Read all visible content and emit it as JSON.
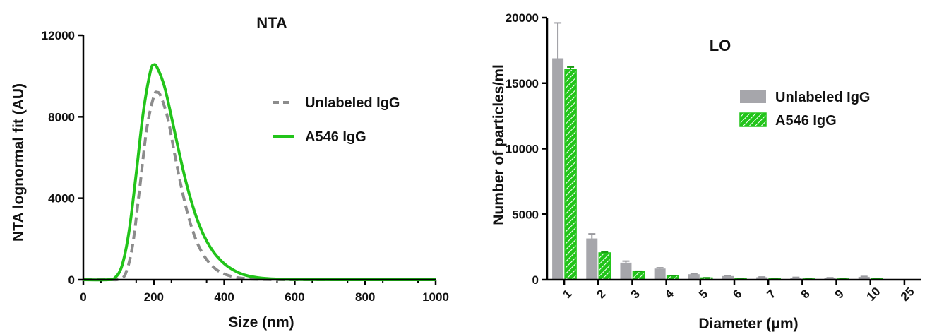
{
  "chart_data": [
    {
      "type": "line",
      "title": "NTA",
      "xlabel": "Size (nm)",
      "ylabel": "NTA lognormal fit (AU)",
      "xlim": [
        0,
        1000
      ],
      "ylim": [
        0,
        12000
      ],
      "xticks": [
        "0",
        "200",
        "400",
        "600",
        "800",
        "1000"
      ],
      "yticks": [
        "0",
        "4000",
        "8000",
        "12000"
      ],
      "legend_position": "right",
      "series": [
        {
          "name": "Unlabeled IgG",
          "style": "dashed",
          "color": "#8c8c8c",
          "x": [
            0,
            80,
            100,
            120,
            140,
            160,
            180,
            200,
            210,
            220,
            240,
            260,
            280,
            300,
            320,
            340,
            360,
            380,
            400,
            430,
            460,
            500,
            600,
            800,
            1000
          ],
          "y": [
            0,
            0,
            20,
            300,
            1700,
            4500,
            7400,
            9000,
            9200,
            9000,
            7900,
            6100,
            4400,
            3000,
            1950,
            1250,
            780,
            470,
            280,
            130,
            60,
            15,
            0,
            0,
            0
          ]
        },
        {
          "name": "A546 IgG",
          "style": "solid",
          "color": "#22c41a",
          "x": [
            0,
            70,
            90,
            110,
            130,
            150,
            170,
            190,
            200,
            210,
            230,
            250,
            270,
            290,
            310,
            330,
            350,
            370,
            390,
            410,
            440,
            470,
            520,
            600,
            800,
            1000
          ],
          "y": [
            0,
            0,
            100,
            700,
            2400,
            5200,
            8200,
            10200,
            10550,
            10400,
            9500,
            8000,
            6400,
            4900,
            3650,
            2650,
            1900,
            1350,
            950,
            650,
            350,
            180,
            60,
            10,
            0,
            0
          ]
        }
      ]
    },
    {
      "type": "bar",
      "title": "LO",
      "xlabel": "Diameter (μm)",
      "ylabel": "Number of particles/ml",
      "ylim": [
        0,
        20000
      ],
      "yticks": [
        "0",
        "5000",
        "10000",
        "15000",
        "20000"
      ],
      "categories": [
        "1",
        "2",
        "3",
        "4",
        "5",
        "6",
        "7",
        "8",
        "9",
        "10",
        "25"
      ],
      "legend_position": "top-right",
      "series": [
        {
          "name": "Unlabeled IgG",
          "fill": "solid",
          "color": "#a6a6ab",
          "values": [
            16900,
            3150,
            1300,
            850,
            420,
            280,
            190,
            160,
            130,
            220,
            0
          ],
          "error": [
            2700,
            350,
            120,
            60,
            40,
            30,
            20,
            20,
            20,
            30,
            0
          ]
        },
        {
          "name": "A546 IgG",
          "fill": "hatched",
          "color": "#22c41a",
          "values": [
            16050,
            2050,
            620,
            300,
            140,
            90,
            70,
            60,
            60,
            70,
            0
          ],
          "error": [
            180,
            60,
            30,
            20,
            10,
            10,
            10,
            10,
            10,
            10,
            0
          ]
        }
      ]
    }
  ]
}
